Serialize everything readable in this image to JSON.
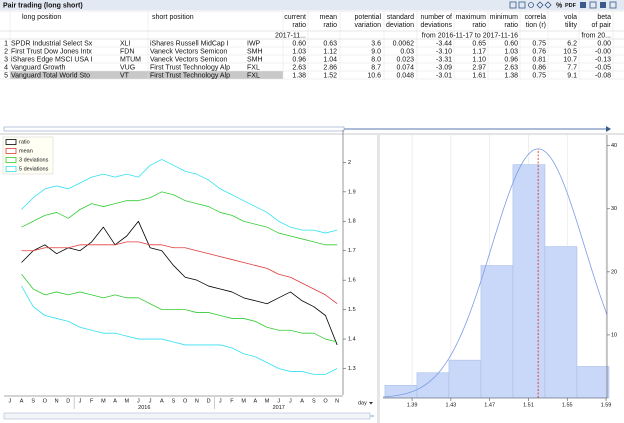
{
  "window": {
    "title": "Pair trading (long short)",
    "toolbar": [
      "%",
      "PDF"
    ]
  },
  "table": {
    "columns": [
      [
        "long position"
      ],
      [
        "short position"
      ],
      [
        "current",
        "ratio"
      ],
      [
        "mean",
        "ratio"
      ],
      [
        "potential",
        "variation"
      ],
      [
        "standard",
        "deviation"
      ],
      [
        "number of",
        "deviations"
      ],
      [
        "maximum",
        "ratio"
      ],
      [
        "minimum",
        "ratio"
      ],
      [
        "correla",
        "tion (r)"
      ],
      [
        "vola",
        "tility"
      ],
      [
        "beta",
        "of pair"
      ]
    ],
    "periods": [
      "2017-11...",
      "from 2016-11-17 to 2017-11-16",
      "from 20..."
    ],
    "rows": [
      [
        "1",
        "SPDR Industrial Select Sx",
        "XLI",
        "iShares Russell MidCap I",
        "IWP",
        "0.60",
        "0.63",
        "3.6",
        "0.0062",
        "-3.44",
        "0.65",
        "0.60",
        "0.75",
        "6.2",
        "0.00"
      ],
      [
        "2",
        "First Trust Dow Jones Intx",
        "FDN",
        "Vaneck Vectors Semicon",
        "SMH",
        "1.03",
        "1.12",
        "9.0",
        "0.03",
        "-3.10",
        "1.17",
        "1.03",
        "0.76",
        "10.5",
        "-0.00"
      ],
      [
        "3",
        "iShares Edge MSCI USA I",
        "MTUM",
        "Vaneck Vectors Semicon",
        "SMH",
        "0.96",
        "1.04",
        "8.0",
        "0.023",
        "-3.31",
        "1.10",
        "0.96",
        "0.81",
        "10.7",
        "-0.13"
      ],
      [
        "4",
        "Vanguard Growth",
        "VUG",
        "First Trust Technology Alp",
        "FXL",
        "2.63",
        "2.86",
        "8.7",
        "0.074",
        "-3.09",
        "2.97",
        "2.63",
        "0.86",
        "7.7",
        "-0.05"
      ],
      [
        "5",
        "Vanguard Total World Sto",
        "VT",
        "First Trust Technology Alp",
        "FXL",
        "1.38",
        "1.52",
        "10.6",
        "0.048",
        "-3.01",
        "1.61",
        "1.38",
        "0.75",
        "9.1",
        "-0.08"
      ]
    ],
    "selected_row": 4
  },
  "chart_data": [
    {
      "type": "line",
      "categories": [
        "J",
        "A",
        "S",
        "O",
        "N",
        "D",
        "J",
        "F",
        "M",
        "A",
        "M",
        "J",
        "J",
        "A",
        "S",
        "O",
        "N",
        "D",
        "J",
        "F",
        "M",
        "A",
        "M",
        "J",
        "J",
        "A",
        "S",
        "O",
        "N"
      ],
      "years": [
        "2016",
        "2017"
      ],
      "series": [
        {
          "name": "ratio",
          "color": "#000000",
          "values": [
            null,
            1.66,
            1.7,
            1.72,
            1.69,
            1.71,
            1.7,
            1.73,
            1.78,
            1.72,
            1.75,
            1.8,
            1.71,
            1.7,
            1.65,
            1.61,
            1.6,
            1.58,
            1.57,
            1.56,
            1.54,
            1.53,
            1.52,
            1.54,
            1.56,
            1.53,
            1.51,
            1.48,
            1.38
          ]
        },
        {
          "name": "mean",
          "color": "#e03c3c",
          "values": [
            null,
            1.7,
            1.7,
            1.71,
            1.71,
            1.71,
            1.72,
            1.72,
            1.72,
            1.72,
            1.73,
            1.73,
            1.72,
            1.72,
            1.71,
            1.71,
            1.7,
            1.69,
            1.68,
            1.67,
            1.66,
            1.65,
            1.64,
            1.62,
            1.61,
            1.59,
            1.57,
            1.55,
            1.52
          ]
        },
        {
          "name": "3 deviations",
          "color": "#33cc33",
          "upper": [
            null,
            1.78,
            1.8,
            1.82,
            1.83,
            1.81,
            1.84,
            1.86,
            1.85,
            1.86,
            1.87,
            1.87,
            1.88,
            1.9,
            1.89,
            1.87,
            1.86,
            1.85,
            1.83,
            1.82,
            1.8,
            1.79,
            1.78,
            1.76,
            1.75,
            1.74,
            1.73,
            1.72,
            1.72
          ],
          "lower": [
            null,
            1.62,
            1.57,
            1.55,
            1.56,
            1.55,
            1.56,
            1.55,
            1.54,
            1.55,
            1.54,
            1.54,
            1.52,
            1.5,
            1.5,
            1.5,
            1.49,
            1.49,
            1.48,
            1.47,
            1.47,
            1.46,
            1.44,
            1.43,
            1.43,
            1.42,
            1.42,
            1.4,
            1.39
          ]
        },
        {
          "name": "5 deviations",
          "color": "#33e0f0",
          "upper": [
            null,
            1.84,
            1.88,
            1.91,
            1.92,
            1.91,
            1.93,
            1.95,
            1.96,
            1.95,
            1.96,
            1.95,
            1.99,
            2.01,
            1.99,
            1.97,
            1.96,
            1.94,
            1.91,
            1.89,
            1.87,
            1.85,
            1.83,
            1.8,
            1.78,
            1.77,
            1.77,
            1.76,
            1.77
          ],
          "lower": [
            null,
            1.58,
            1.51,
            1.48,
            1.47,
            1.46,
            1.44,
            1.43,
            1.42,
            1.42,
            1.41,
            1.4,
            1.4,
            1.4,
            1.39,
            1.38,
            1.38,
            1.38,
            1.38,
            1.37,
            1.35,
            1.34,
            1.32,
            1.3,
            1.29,
            1.29,
            1.28,
            1.28,
            1.3
          ]
        }
      ],
      "ylim": [
        1.21,
        2.11
      ],
      "yticks": [
        1.3,
        1.4,
        1.5,
        1.6,
        1.7,
        1.8,
        1.9,
        2
      ],
      "period_selector": "day"
    },
    {
      "type": "histogram",
      "bins": [
        1.362,
        1.395,
        1.428,
        1.461,
        1.494,
        1.527,
        1.56,
        1.593
      ],
      "counts": [
        2,
        4,
        6,
        21,
        37,
        24,
        5
      ],
      "color": "#c9d8f8",
      "xlim": [
        1.36,
        1.591
      ],
      "xticks": [
        1.39,
        1.43,
        1.47,
        1.51,
        1.55,
        1.59
      ],
      "ylim": [
        0,
        41.7
      ],
      "yticks": [
        10,
        20,
        30,
        40
      ],
      "grid": true,
      "normal_fit": {
        "mean": 1.52,
        "sd": 0.048,
        "peak": 39.5,
        "color": "#7c9ce6"
      },
      "mean_line_color": "#e02020"
    }
  ]
}
